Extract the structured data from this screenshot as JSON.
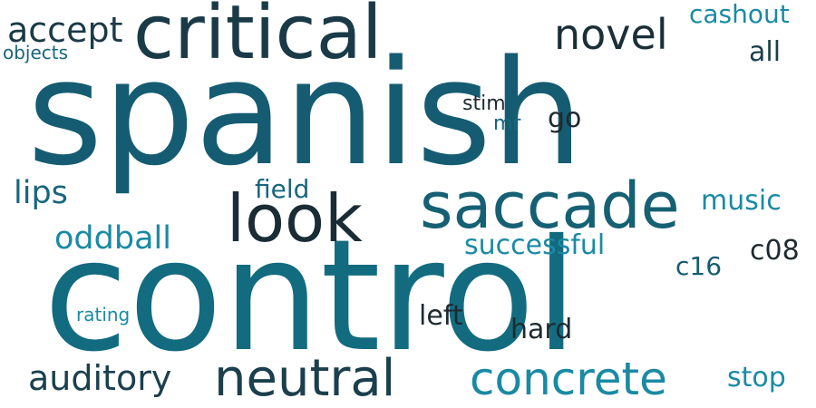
{
  "palette": {
    "dark": "#1a3d4a",
    "mid": "#16596e",
    "teal": "#0f6a82",
    "light": "#1a8fa8"
  },
  "words": [
    {
      "text": "spanish",
      "color": "#155c72"
    },
    {
      "text": "control",
      "color": "#136b80"
    },
    {
      "text": "critical",
      "color": "#1a3a47"
    },
    {
      "text": "saccade",
      "color": "#166073"
    },
    {
      "text": "look",
      "color": "#1a2c35"
    },
    {
      "text": "neutral",
      "color": "#1b3f4d"
    },
    {
      "text": "concrete",
      "color": "#1a8aa3"
    },
    {
      "text": "novel",
      "color": "#1a2f38"
    },
    {
      "text": "auditory",
      "color": "#1b3f4d"
    },
    {
      "text": "accept",
      "color": "#1b3a47"
    },
    {
      "text": "oddball",
      "color": "#1a8aa3"
    },
    {
      "text": "lips",
      "color": "#18667c"
    },
    {
      "text": "successful",
      "color": "#1a8aa3"
    },
    {
      "text": "left",
      "color": "#1e2a30"
    },
    {
      "text": "hard",
      "color": "#1e2a30"
    },
    {
      "text": "cashout",
      "color": "#1a8aa3"
    },
    {
      "text": "music",
      "color": "#1a8aa3"
    },
    {
      "text": "c08",
      "color": "#1e2a30"
    },
    {
      "text": "field",
      "color": "#18667c"
    },
    {
      "text": "stop",
      "color": "#1a8aa3"
    },
    {
      "text": "all",
      "color": "#1b3f4d"
    },
    {
      "text": "c16",
      "color": "#155c72"
    },
    {
      "text": "go",
      "color": "#1e2a30"
    },
    {
      "text": "objects",
      "color": "#18667c"
    },
    {
      "text": "stim",
      "color": "#1e2a30"
    },
    {
      "text": "mr",
      "color": "#18667c"
    },
    {
      "text": "rating",
      "color": "#1a8aa3"
    }
  ]
}
